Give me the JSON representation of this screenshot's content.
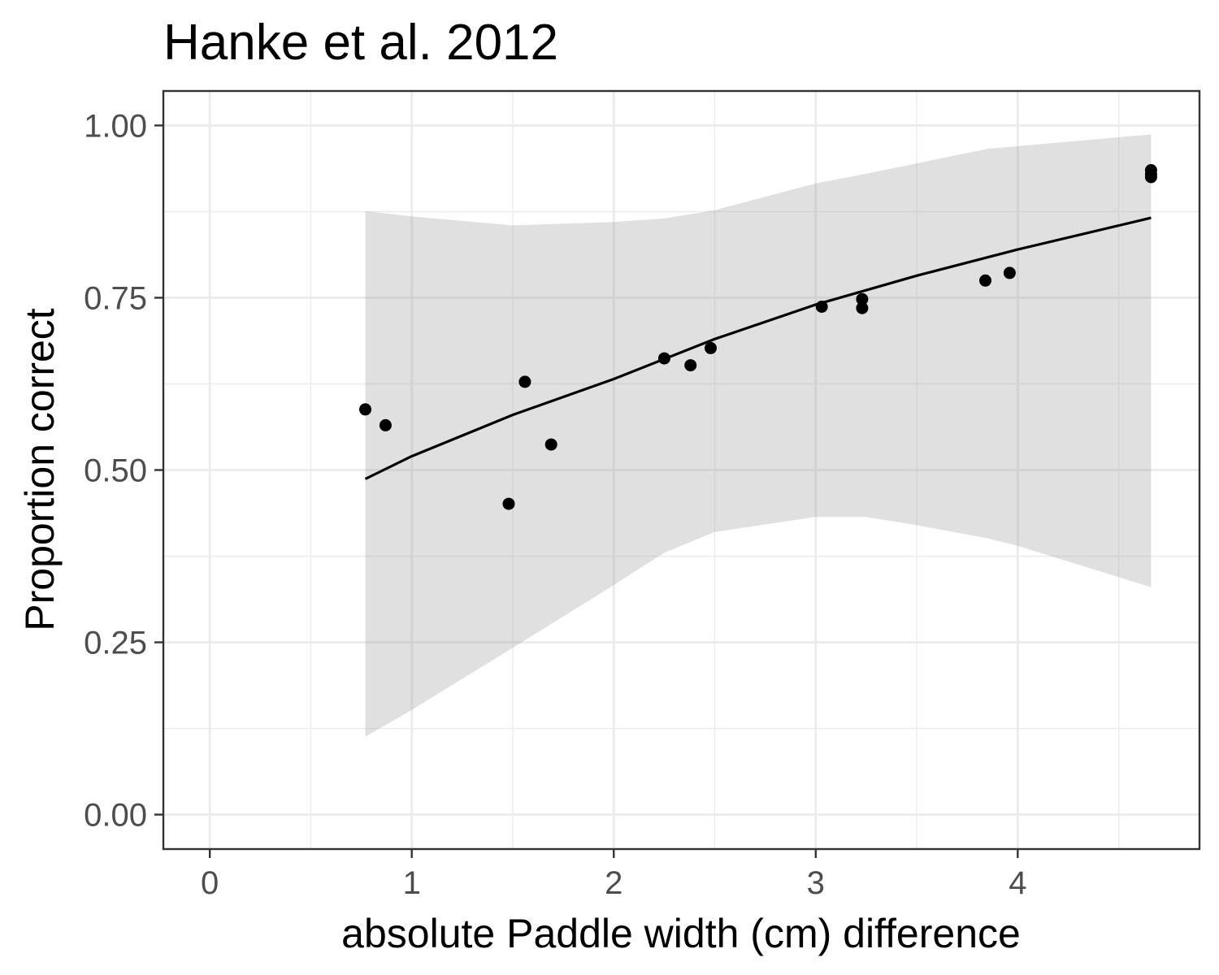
{
  "chart_data": {
    "type": "scatter",
    "title": "Hanke et al. 2012",
    "xlabel": "absolute Paddle width (cm) difference",
    "ylabel": "Proportion correct",
    "xlim": [
      -0.23,
      4.9
    ],
    "ylim": [
      -0.05,
      1.05
    ],
    "x_ticks": [
      0,
      1,
      2,
      3,
      4
    ],
    "x_tick_labels": [
      "0",
      "1",
      "2",
      "3",
      "4"
    ],
    "x_minor_ticks": [
      0.5,
      1.5,
      2.5,
      3.5,
      4.5
    ],
    "y_ticks": [
      0,
      0.25,
      0.5,
      0.75,
      1.0
    ],
    "y_tick_labels": [
      "0.00",
      "0.25",
      "0.50",
      "0.75",
      "1.00"
    ],
    "y_minor_ticks": [
      0.125,
      0.375,
      0.625,
      0.875
    ],
    "grid": true,
    "theme": "bw",
    "series": [
      {
        "type": "scatter",
        "x": [
          0.77,
          0.87,
          1.48,
          1.56,
          1.69,
          2.25,
          2.38,
          2.48,
          3.03,
          3.23,
          3.23,
          3.84,
          3.96,
          4.66,
          4.66,
          4.66
        ],
        "y": [
          0.588,
          0.565,
          0.451,
          0.628,
          0.537,
          0.662,
          0.652,
          0.677,
          0.737,
          0.748,
          0.735,
          0.775,
          0.786,
          0.935,
          0.929,
          0.925
        ]
      },
      {
        "type": "line",
        "x": [
          0.77,
          1.0,
          1.5,
          2.0,
          2.5,
          3.0,
          3.5,
          4.0,
          4.66
        ],
        "y": [
          0.487,
          0.52,
          0.58,
          0.632,
          0.69,
          0.74,
          0.782,
          0.82,
          0.866
        ]
      },
      {
        "type": "area",
        "x": [
          0.77,
          1.0,
          1.5,
          2.0,
          2.25,
          2.5,
          3.0,
          3.25,
          3.5,
          3.85,
          4.0,
          4.66
        ],
        "upper": [
          0.876,
          0.868,
          0.855,
          0.86,
          0.865,
          0.877,
          0.916,
          0.93,
          0.945,
          0.966,
          0.97,
          0.987
        ],
        "lower": [
          0.113,
          0.152,
          0.242,
          0.333,
          0.38,
          0.41,
          0.432,
          0.432,
          0.42,
          0.401,
          0.39,
          0.33
        ]
      }
    ]
  }
}
